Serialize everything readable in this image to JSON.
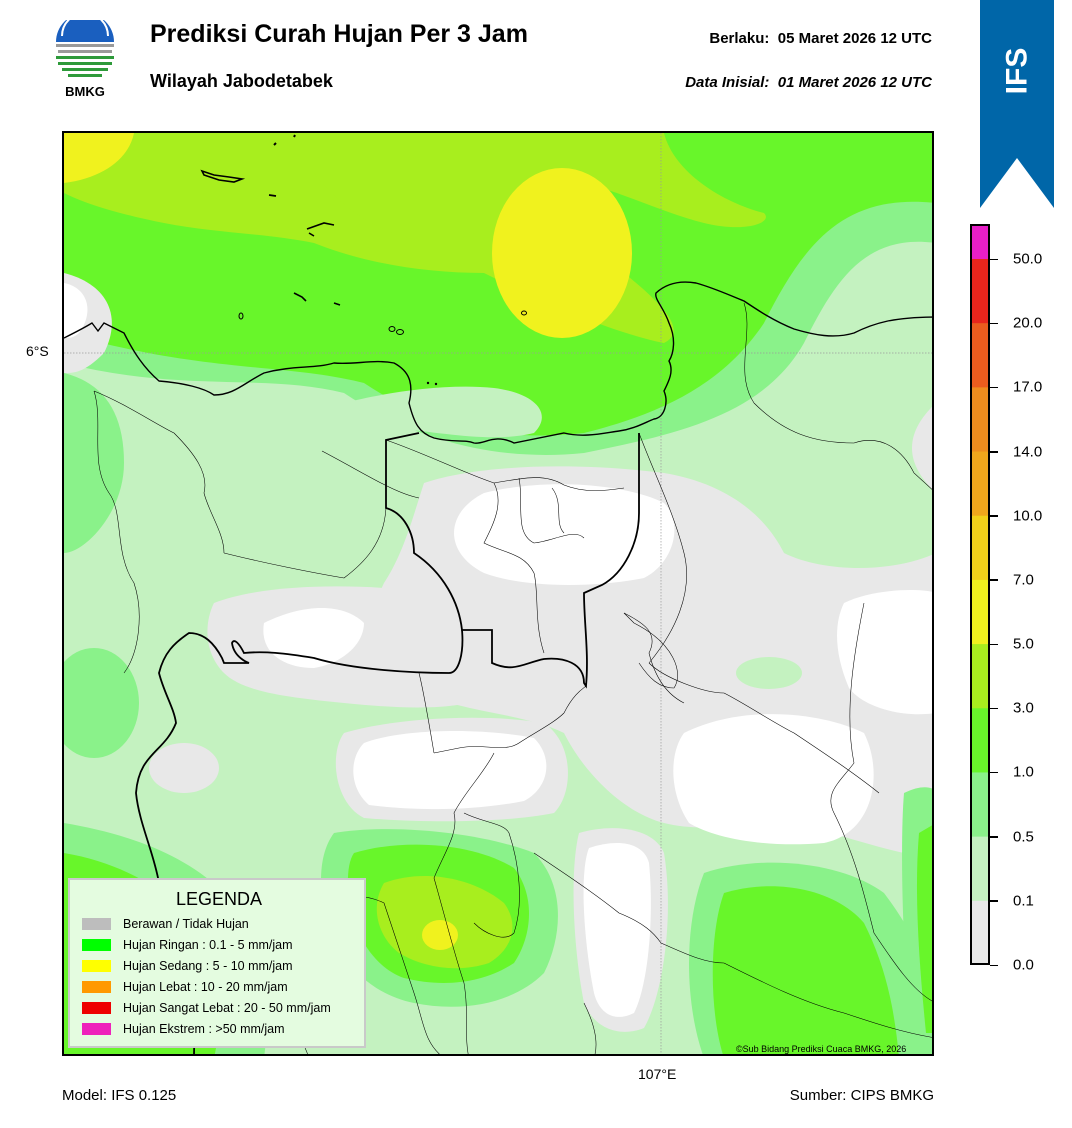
{
  "header": {
    "title": "Prediksi Curah Hujan Per 3 Jam",
    "subtitle": "Wilayah Jabodetabek",
    "valid_label": "Berlaku:",
    "valid_value": "05 Maret 2026 12 UTC",
    "init_label": "Data Inisial:",
    "init_value": "01 Maret 2026 12 UTC"
  },
  "logo": {
    "text": "BMKG",
    "icon": "bmkg-logo-icon"
  },
  "ribbon": {
    "text": "IFS",
    "color": "#0066a8"
  },
  "map": {
    "lat_label": "6°S",
    "lon_label": "107°E",
    "copyright": "©Sub Bidang Prediksi Cuaca BMKG, 2026",
    "colors": {
      "cloudy": "#e8e8e8",
      "white": "#ffffff",
      "very_light": "#c4f2c0",
      "light": "#8af28a",
      "green": "#68f62a",
      "lime": "#a8ee1e",
      "yellow": "#f0f21e"
    }
  },
  "legend": {
    "title": "LEGENDA",
    "items": [
      {
        "label": "Berawan / Tidak Hujan",
        "color": "#bdbdbd"
      },
      {
        "label": "Hujan Ringan : 0.1 - 5 mm/jam",
        "color": "#00ff00"
      },
      {
        "label": "Hujan Sedang : 5 - 10 mm/jam",
        "color": "#ffff00"
      },
      {
        "label": "Hujan Lebat : 10 - 20 mm/jam",
        "color": "#ff9900"
      },
      {
        "label": "Hujan Sangat Lebat : 20 - 50 mm/jam",
        "color": "#ee0000"
      },
      {
        "label": "Hujan Ekstrem : >50 mm/jam",
        "color": "#ee22bb"
      }
    ]
  },
  "colorbar": {
    "ticks": [
      "50.0",
      "20.0",
      "17.0",
      "14.0",
      "10.0",
      "7.0",
      "5.0",
      "3.0",
      "1.0",
      "0.5",
      "0.1",
      "0.0"
    ],
    "segments": [
      "#e71fc7",
      "#e8251c",
      "#eb5c1e",
      "#ee8c1e",
      "#f0a61c",
      "#f2d01a",
      "#f0f21e",
      "#a8ee1e",
      "#68f62a",
      "#8af28a",
      "#c4f2c0",
      "#e8e8e8"
    ]
  },
  "footer": {
    "model": "Model: IFS 0.125",
    "source": "Sumber: CIPS BMKG"
  }
}
